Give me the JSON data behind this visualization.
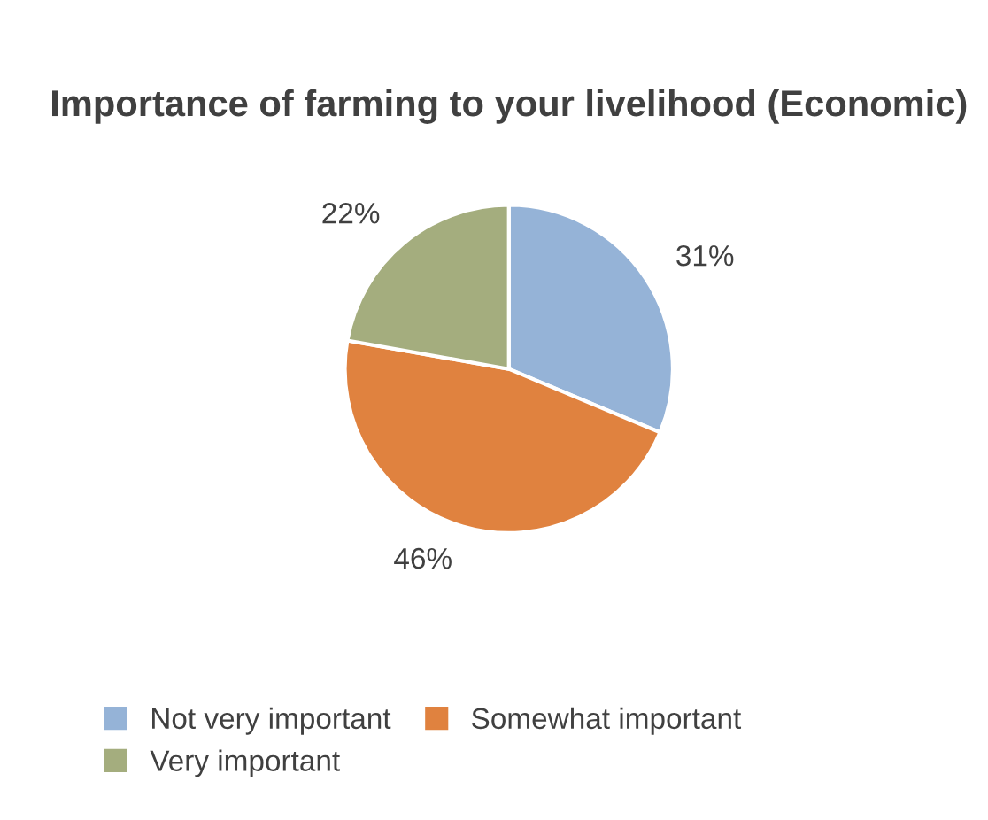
{
  "chart_data": {
    "type": "pie",
    "title": "Importance of farming to your livelihood (Economic)",
    "categories": [
      "Not very important",
      "Somewhat important",
      "Very important"
    ],
    "values": [
      31,
      46,
      22
    ],
    "value_labels": [
      "31%",
      "46%",
      "22%"
    ],
    "colors": [
      "#95b3d7",
      "#e0823f",
      "#a4ad7e"
    ],
    "legend": "bottom"
  }
}
